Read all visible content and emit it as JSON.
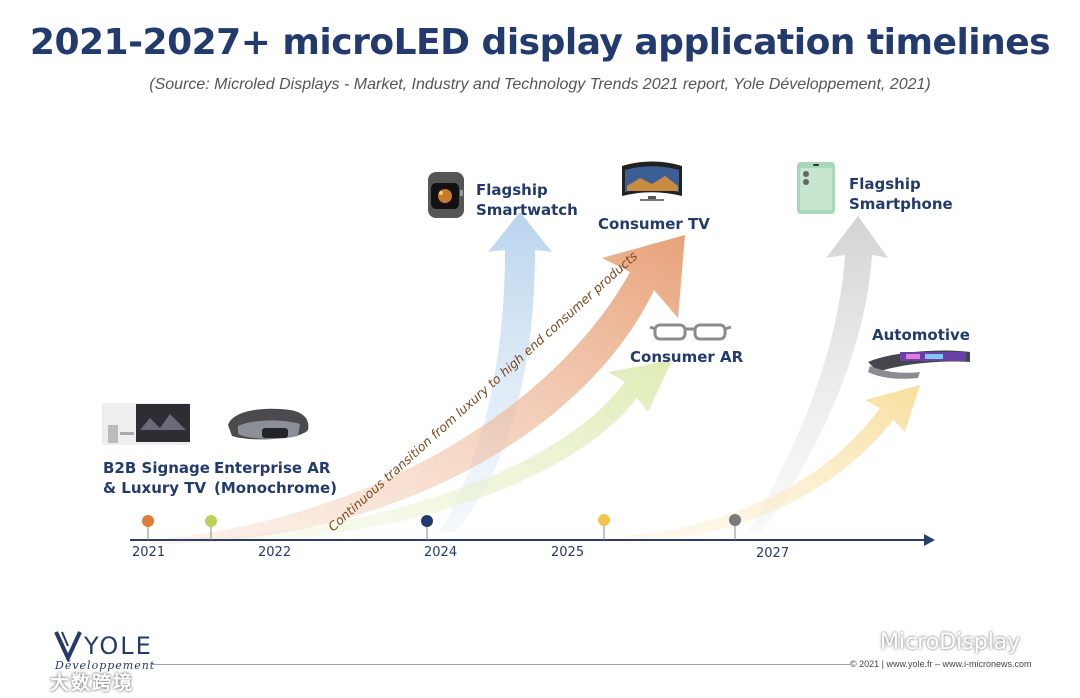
{
  "title": "2021-2027+ microLED display application timelines",
  "subtitle": "(Source: Microled Displays - Market, Industry and Technology Trends 2021 report, Yole Développement, 2021)",
  "timeline": {
    "years": [
      "2021",
      "2022",
      "2024",
      "2025",
      "2027"
    ],
    "colors": {
      "axis": "#2c3e6b",
      "dot_2021": "#e07b39",
      "dot_2022": "#b7d35b",
      "dot_2024": "#233a6e",
      "dot_2025": "#f3c64a",
      "dot_2027": "#7a7a7a",
      "arrow_consumer_tv": "#e8a27a",
      "arrow_smartwatch": "#b9d4ee",
      "arrow_consumer_ar": "#dfecb6",
      "arrow_smartphone": "#d6d6d6",
      "arrow_automotive": "#f9e3a8"
    }
  },
  "applications": {
    "b2b_signage_line1": "B2B Signage",
    "b2b_signage_line2": "& Luxury TV",
    "enterprise_ar_line1": "Enterprise AR",
    "enterprise_ar_line2": "(Monochrome)",
    "flagship_smartwatch_line1": "Flagship",
    "flagship_smartwatch_line2": "Smartwatch",
    "consumer_tv": "Consumer TV",
    "consumer_ar": "Consumer AR",
    "flagship_smartphone_line1": "Flagship",
    "flagship_smartphone_line2": "Smartphone",
    "automotive": "Automotive"
  },
  "transition_text": "Continuous transition from luxury to high end consumer products",
  "footer": {
    "logo_name": "YOLE",
    "logo_sub": "Développement",
    "copyright": "© 2021 | www.yole.fr – www.i-micronews.com",
    "watermark_left": "大数跨境",
    "watermark_right": "MicroDisplay"
  }
}
